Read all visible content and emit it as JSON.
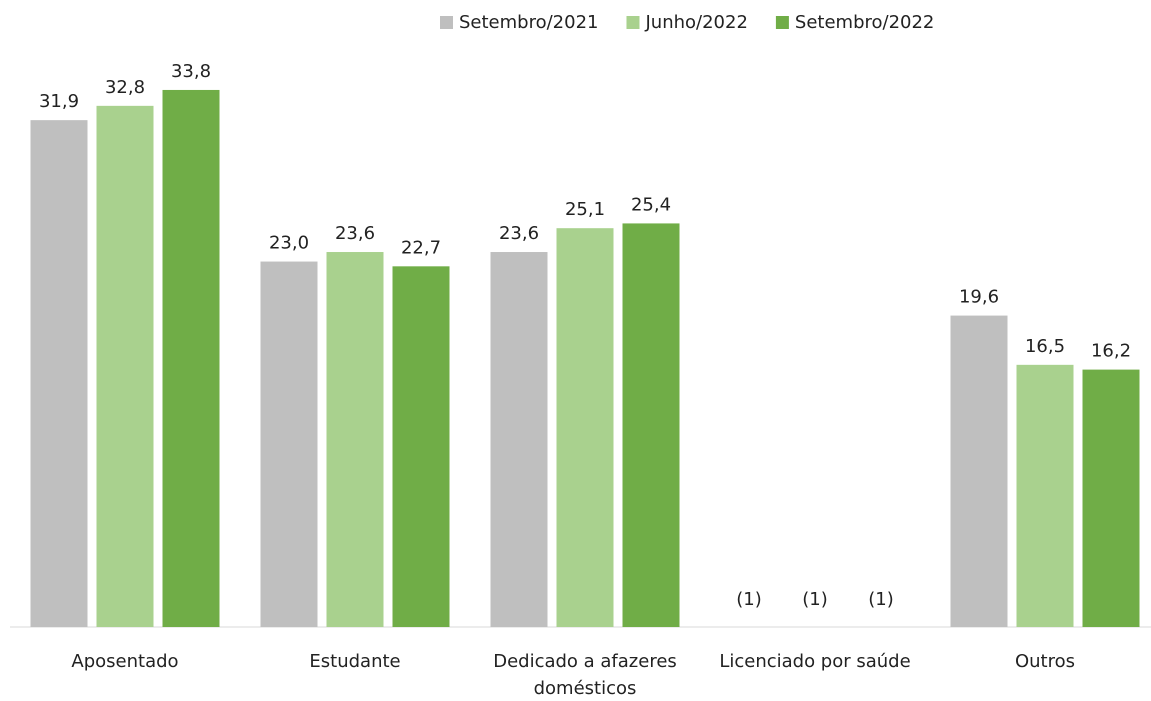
{
  "chart_data": {
    "type": "bar",
    "categories": [
      "Aposentado",
      "Estudante",
      "Dedicado a afazeres domésticos",
      "Licenciado por saúde",
      "Outros"
    ],
    "series": [
      {
        "name": "Setembro/2021",
        "color": "#bfbfbf",
        "values": [
          31.9,
          23.0,
          23.6,
          null,
          19.6
        ],
        "value_labels": [
          "31,9",
          "23,0",
          "23,6",
          "(1)",
          "19,6"
        ]
      },
      {
        "name": "Junho/2022",
        "color": "#a9d18e",
        "values": [
          32.8,
          23.6,
          25.1,
          null,
          16.5
        ],
        "value_labels": [
          "32,8",
          "23,6",
          "25,1",
          "(1)",
          "16,5"
        ]
      },
      {
        "name": "Setembro/2022",
        "color": "#70ad47",
        "values": [
          33.8,
          22.7,
          25.4,
          null,
          16.2
        ],
        "value_labels": [
          "33,8",
          "22,7",
          "25,4",
          "(1)",
          "16,2"
        ]
      }
    ],
    "ylim": [
      0,
      36
    ],
    "legend": "top"
  }
}
